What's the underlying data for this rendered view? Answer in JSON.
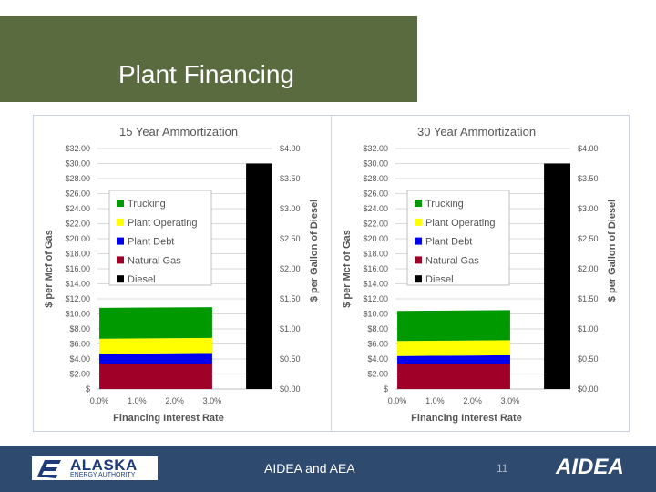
{
  "slide": {
    "title": "Plant Financing"
  },
  "footer": {
    "logo_main": "ALASKA",
    "logo_sub": "ENERGY AUTHORITY",
    "center_text": "AIDEA and AEA",
    "page_number": "11",
    "right_logo": "AIDEA"
  },
  "colors": {
    "trucking": "#009900",
    "plant_operating": "#ffff00",
    "plant_debt": "#0000ee",
    "natural_gas": "#a00028",
    "diesel": "#000000",
    "title_bg": "#5a6b3f",
    "footer_bg": "#2f4a6f"
  },
  "chart_data": [
    {
      "type": "bar",
      "stacked": true,
      "title": "15 Year Ammortization",
      "xlabel": "Financing Interest Rate",
      "ylabel": "$ per Mcf of Gas",
      "ylabel_right": "$ per Gallon of Diesel",
      "ylim": [
        0,
        32
      ],
      "ylim_right": [
        0,
        4
      ],
      "x_ticks": [
        "0.0%",
        "1.0%",
        "2.0%",
        "3.0%"
      ],
      "y_ticks": [
        "$",
        "$2.00",
        "$4.00",
        "$6.00",
        "$8.00",
        "$10.00",
        "$12.00",
        "$14.00",
        "$16.00",
        "$18.00",
        "$20.00",
        "$22.00",
        "$24.00",
        "$26.00",
        "$28.00",
        "$30.00",
        "$32.00"
      ],
      "y2_ticks": [
        "$0.00",
        "$0.50",
        "$1.00",
        "$1.50",
        "$2.00",
        "$2.50",
        "$3.00",
        "$3.50",
        "$4.00"
      ],
      "x": [
        0,
        3
      ],
      "series": [
        {
          "name": "Natural Gas",
          "key": "natural_gas",
          "values": [
            3.4,
            3.4
          ]
        },
        {
          "name": "Plant Debt",
          "key": "plant_debt",
          "values": [
            1.3,
            1.4
          ]
        },
        {
          "name": "Plant Operating",
          "key": "plant_operating",
          "values": [
            2.0,
            2.0
          ]
        },
        {
          "name": "Trucking",
          "key": "trucking",
          "values": [
            4.1,
            4.1
          ]
        }
      ],
      "diesel": {
        "name": "Diesel",
        "key": "diesel",
        "value": 30.0
      },
      "legend": [
        "Trucking",
        "Plant Operating",
        "Plant Debt",
        "Natural Gas",
        "Diesel"
      ],
      "legend_position": "upper-left"
    },
    {
      "type": "bar",
      "stacked": true,
      "title": "30 Year Ammortization",
      "xlabel": "Financing Interest Rate",
      "ylabel": "$ per Mcf of Gas",
      "ylabel_right": "$ per Gallon of Diesel",
      "ylim": [
        0,
        32
      ],
      "ylim_right": [
        0,
        4
      ],
      "x_ticks": [
        "0.0%",
        "1.0%",
        "2.0%",
        "3.0%"
      ],
      "y_ticks": [
        "$",
        "$2.00",
        "$4.00",
        "$6.00",
        "$8.00",
        "$10.00",
        "$12.00",
        "$14.00",
        "$16.00",
        "$18.00",
        "$20.00",
        "$22.00",
        "$24.00",
        "$26.00",
        "$28.00",
        "$30.00",
        "$32.00"
      ],
      "y2_ticks": [
        "$0.00",
        "$0.50",
        "$1.00",
        "$1.50",
        "$2.00",
        "$2.50",
        "$3.00",
        "$3.50",
        "$4.00"
      ],
      "x": [
        0,
        3
      ],
      "series": [
        {
          "name": "Natural Gas",
          "key": "natural_gas",
          "values": [
            3.4,
            3.4
          ]
        },
        {
          "name": "Plant Debt",
          "key": "plant_debt",
          "values": [
            1.0,
            1.1
          ]
        },
        {
          "name": "Plant Operating",
          "key": "plant_operating",
          "values": [
            2.0,
            2.0
          ]
        },
        {
          "name": "Trucking",
          "key": "trucking",
          "values": [
            4.0,
            4.0
          ]
        }
      ],
      "diesel": {
        "name": "Diesel",
        "key": "diesel",
        "value": 30.0
      },
      "legend": [
        "Trucking",
        "Plant Operating",
        "Plant Debt",
        "Natural Gas",
        "Diesel"
      ],
      "legend_position": "upper-left"
    }
  ]
}
